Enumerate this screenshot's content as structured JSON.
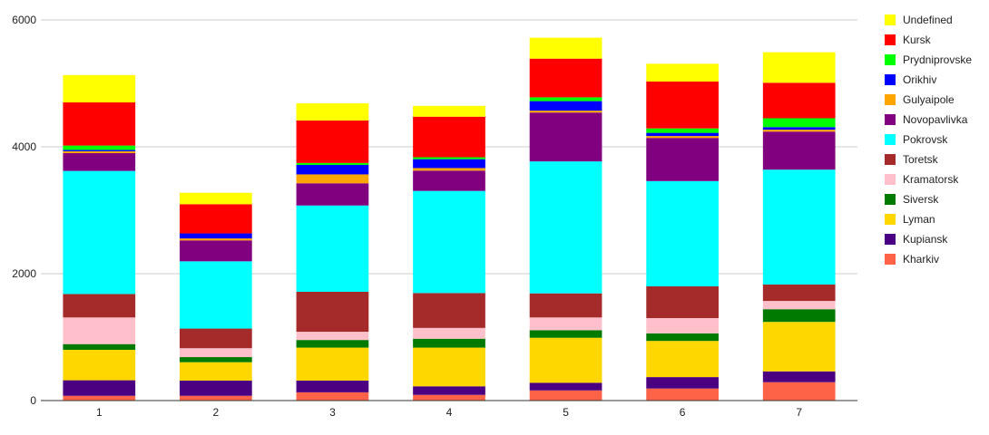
{
  "chart_data": {
    "type": "bar",
    "stacked": true,
    "title": "",
    "xlabel": "",
    "ylabel": "",
    "categories": [
      "1",
      "2",
      "3",
      "4",
      "5",
      "6",
      "7"
    ],
    "ylim": [
      0,
      6000
    ],
    "yticks": [
      0,
      2000,
      4000,
      6000
    ],
    "ytick_labels": [
      "0",
      "2000",
      "4000",
      "6000"
    ],
    "grid": true,
    "legend_position": "right",
    "series": [
      {
        "name": "Kharkiv",
        "color": "#FF6347",
        "values": [
          75,
          75,
          130,
          90,
          160,
          190,
          290
        ]
      },
      {
        "name": "Kupiansk",
        "color": "#4B0082",
        "values": [
          245,
          240,
          185,
          135,
          120,
          180,
          170
        ]
      },
      {
        "name": "Lyman",
        "color": "#FFD700",
        "values": [
          480,
          290,
          520,
          610,
          710,
          570,
          780
        ]
      },
      {
        "name": "Siversk",
        "color": "#007A00",
        "values": [
          90,
          80,
          120,
          140,
          120,
          120,
          200
        ]
      },
      {
        "name": "Kramatorsk",
        "color": "#FFC0CB",
        "values": [
          420,
          140,
          130,
          170,
          200,
          240,
          130
        ]
      },
      {
        "name": "Toretsk",
        "color": "#A52A2A",
        "values": [
          370,
          310,
          630,
          550,
          380,
          500,
          260
        ]
      },
      {
        "name": "Pokrovsk",
        "color": "#00FFFF",
        "values": [
          1940,
          1060,
          1360,
          1610,
          2080,
          1660,
          1810
        ]
      },
      {
        "name": "Novopavlivka",
        "color": "#800080",
        "values": [
          280,
          330,
          350,
          320,
          770,
          680,
          600
        ]
      },
      {
        "name": "Gulyaipole",
        "color": "#FFA500",
        "values": [
          30,
          30,
          140,
          40,
          30,
          30,
          30
        ]
      },
      {
        "name": "Orikhiv",
        "color": "#0000FF",
        "values": [
          20,
          80,
          150,
          140,
          150,
          50,
          40
        ]
      },
      {
        "name": "Prydniprovske",
        "color": "#00FF00",
        "values": [
          70,
          0,
          30,
          30,
          60,
          70,
          140
        ]
      },
      {
        "name": "Kursk",
        "color": "#FF0000",
        "values": [
          680,
          460,
          670,
          640,
          610,
          740,
          560
        ]
      },
      {
        "name": "Undefined",
        "color": "#FFFF00",
        "values": [
          430,
          180,
          270,
          170,
          330,
          280,
          480
        ]
      }
    ]
  }
}
